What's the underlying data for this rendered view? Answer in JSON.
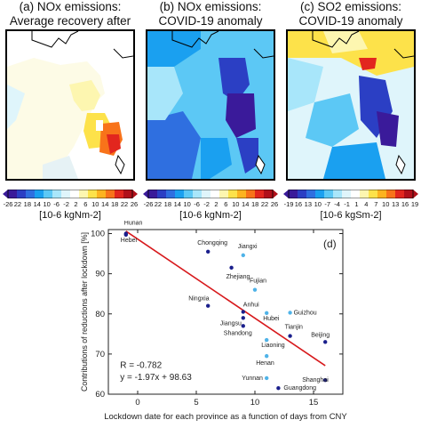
{
  "panels": [
    {
      "title_line1": "(a) NOx emissions:",
      "title_line2": "Average recovery after CNY",
      "colorbar_ticks": [
        "-26",
        "22",
        "18",
        "14",
        "10",
        "-6",
        "-2",
        "2",
        "6",
        "10",
        "14",
        "18",
        "22",
        "26"
      ],
      "colorbar_unit": "[10-6 kgNm-2]"
    },
    {
      "title_line1": "(b) NOx emissions:",
      "title_line2": "COVID-19 anomaly",
      "colorbar_ticks": [
        "-26",
        "22",
        "18",
        "14",
        "10",
        "-6",
        "-2",
        "2",
        "6",
        "10",
        "14",
        "18",
        "22",
        "26"
      ],
      "colorbar_unit": "[10-6 kgNm-2]"
    },
    {
      "title_line1": "(c) SO2 emissions:",
      "title_line2": "COVID-19 anomaly",
      "colorbar_ticks": [
        "-19",
        "16",
        "13",
        "10",
        "-7",
        "-4",
        "-1",
        "1",
        "4",
        "7",
        "10",
        "13",
        "16",
        "19"
      ],
      "colorbar_unit": "[10-6 kgSm-2]"
    }
  ],
  "colors": {
    "colorbar": [
      "#3a1a9a",
      "#2b3fc4",
      "#2f6fe0",
      "#1aa0f0",
      "#5cc8f5",
      "#a8e6fa",
      "#dff5fb",
      "#ffffff",
      "#fdf6b0",
      "#fde24a",
      "#fdb31f",
      "#f8731a",
      "#e2261e",
      "#b0101a"
    ],
    "point_dark": "#1a1f8c",
    "point_light": "#4fb3e8",
    "fit_line": "#d7191c"
  },
  "chart_data": {
    "type": "scatter",
    "panel_label": "(d)",
    "xlabel": "Lockdown date for each province as a function of days from CNY",
    "ylabel": "Contributions of reductions after lockdown [%]",
    "xlim": [
      -2.5,
      17.5
    ],
    "ylim": [
      60,
      101
    ],
    "xticks": [
      0,
      5,
      10,
      15
    ],
    "yticks": [
      60,
      70,
      80,
      90,
      100
    ],
    "points": [
      {
        "name": "Hunan",
        "x": -1,
        "y": 100,
        "shade": "dark"
      },
      {
        "name": "Hebei",
        "x": -1,
        "y": 99.7,
        "shade": "dark"
      },
      {
        "name": "Chongqing",
        "x": 6,
        "y": 95.5,
        "shade": "dark"
      },
      {
        "name": "Jiangxi",
        "x": 9,
        "y": 94.6,
        "shade": "light"
      },
      {
        "name": "Zhejiang",
        "x": 8,
        "y": 91.5,
        "shade": "dark"
      },
      {
        "name": "Fujian",
        "x": 10,
        "y": 86,
        "shade": "light"
      },
      {
        "name": "Ningxia",
        "x": 6,
        "y": 82,
        "shade": "dark"
      },
      {
        "name": "Anhui",
        "x": 9,
        "y": 80.5,
        "shade": "dark"
      },
      {
        "name": "Hubei",
        "x": 11,
        "y": 80.2,
        "shade": "light"
      },
      {
        "name": "Guizhou",
        "x": 13,
        "y": 80.3,
        "shade": "light"
      },
      {
        "name": "Jiangsu",
        "x": 9,
        "y": 79,
        "shade": "dark"
      },
      {
        "name": "Shandong",
        "x": 9,
        "y": 77,
        "shade": "dark"
      },
      {
        "name": "Tianjin",
        "x": 13,
        "y": 74.5,
        "shade": "dark"
      },
      {
        "name": "Beijing",
        "x": 16,
        "y": 73,
        "shade": "dark"
      },
      {
        "name": "Liaoning",
        "x": 11,
        "y": 73.5,
        "shade": "light"
      },
      {
        "name": "Henan",
        "x": 11,
        "y": 69.5,
        "shade": "light"
      },
      {
        "name": "Yunnan",
        "x": 11,
        "y": 64,
        "shade": "light"
      },
      {
        "name": "Shanghai",
        "x": 16,
        "y": 63.5,
        "shade": "dark"
      },
      {
        "name": "Guangdong",
        "x": 12,
        "y": 61.5,
        "shade": "dark"
      }
    ],
    "fit": {
      "slope": -1.97,
      "intercept": 98.63,
      "x_range": [
        -1,
        16
      ]
    },
    "annotation_r": "R = -0.782",
    "annotation_eq": "y = -1.97x + 98.63"
  }
}
